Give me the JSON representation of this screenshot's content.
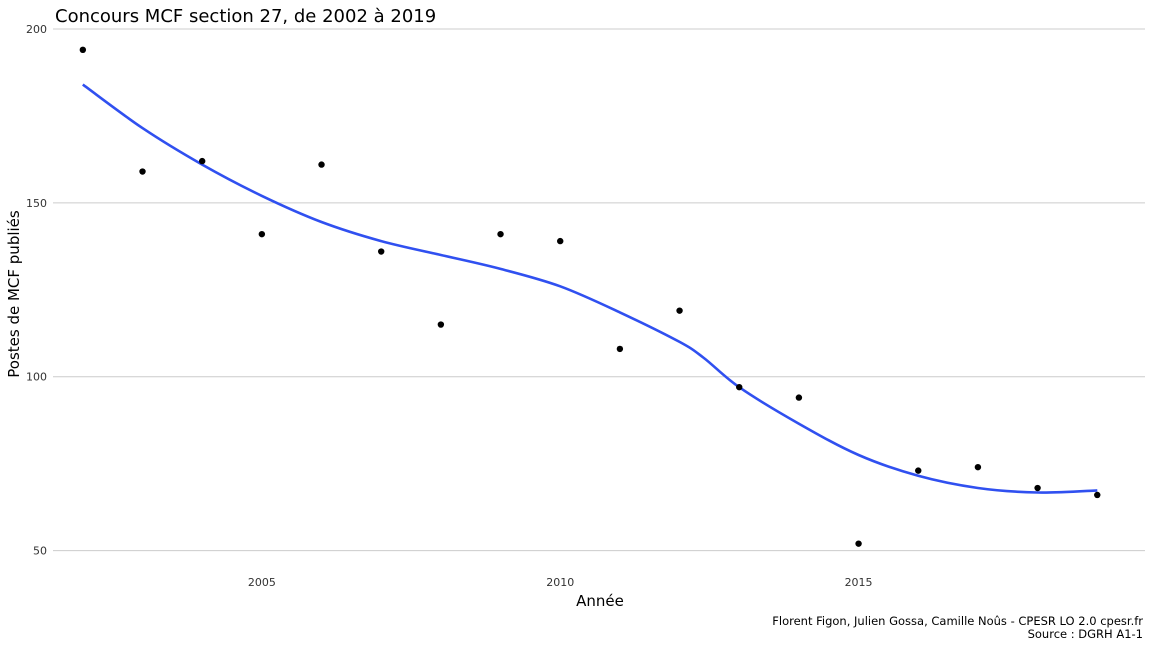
{
  "chart_data": {
    "type": "scatter",
    "title": "Concours MCF section 27, de 2002 à 2019",
    "xlabel": "Année",
    "ylabel": "Postes de MCF publiés",
    "xlim": [
      2001.5,
      2019.8
    ],
    "ylim": [
      45,
      202
    ],
    "x_ticks": [
      2005,
      2010,
      2015
    ],
    "y_ticks": [
      50,
      100,
      150,
      200
    ],
    "grid": "horizontal major lines only",
    "points": {
      "x": [
        2002,
        2003,
        2004,
        2005,
        2006,
        2007,
        2008,
        2009,
        2010,
        2011,
        2012,
        2013,
        2014,
        2015,
        2016,
        2017,
        2018,
        2019
      ],
      "y": [
        194,
        159,
        162,
        141,
        161,
        136,
        115,
        141,
        139,
        108,
        119,
        97,
        94,
        52,
        73,
        74,
        68,
        66
      ]
    },
    "smooth_curve": {
      "method": "loess",
      "color": "#3050f0",
      "x": [
        2002,
        2003,
        2004,
        2005,
        2006,
        2007,
        2008,
        2009,
        2010,
        2011,
        2012,
        2012.4,
        2013,
        2014,
        2015,
        2016,
        2017,
        2018,
        2019
      ],
      "y": [
        184,
        171.5,
        161,
        152,
        144.5,
        139,
        135,
        131,
        126,
        118.5,
        110,
        105.5,
        97,
        86.5,
        77.5,
        71.5,
        68,
        66.7,
        67.3
      ]
    },
    "caption_lines": [
      "Florent Figon, Julien Gossa, Camille Noûs - CPESR LO 2.0 cpesr.fr",
      "Source : DGRH A1-1"
    ]
  }
}
